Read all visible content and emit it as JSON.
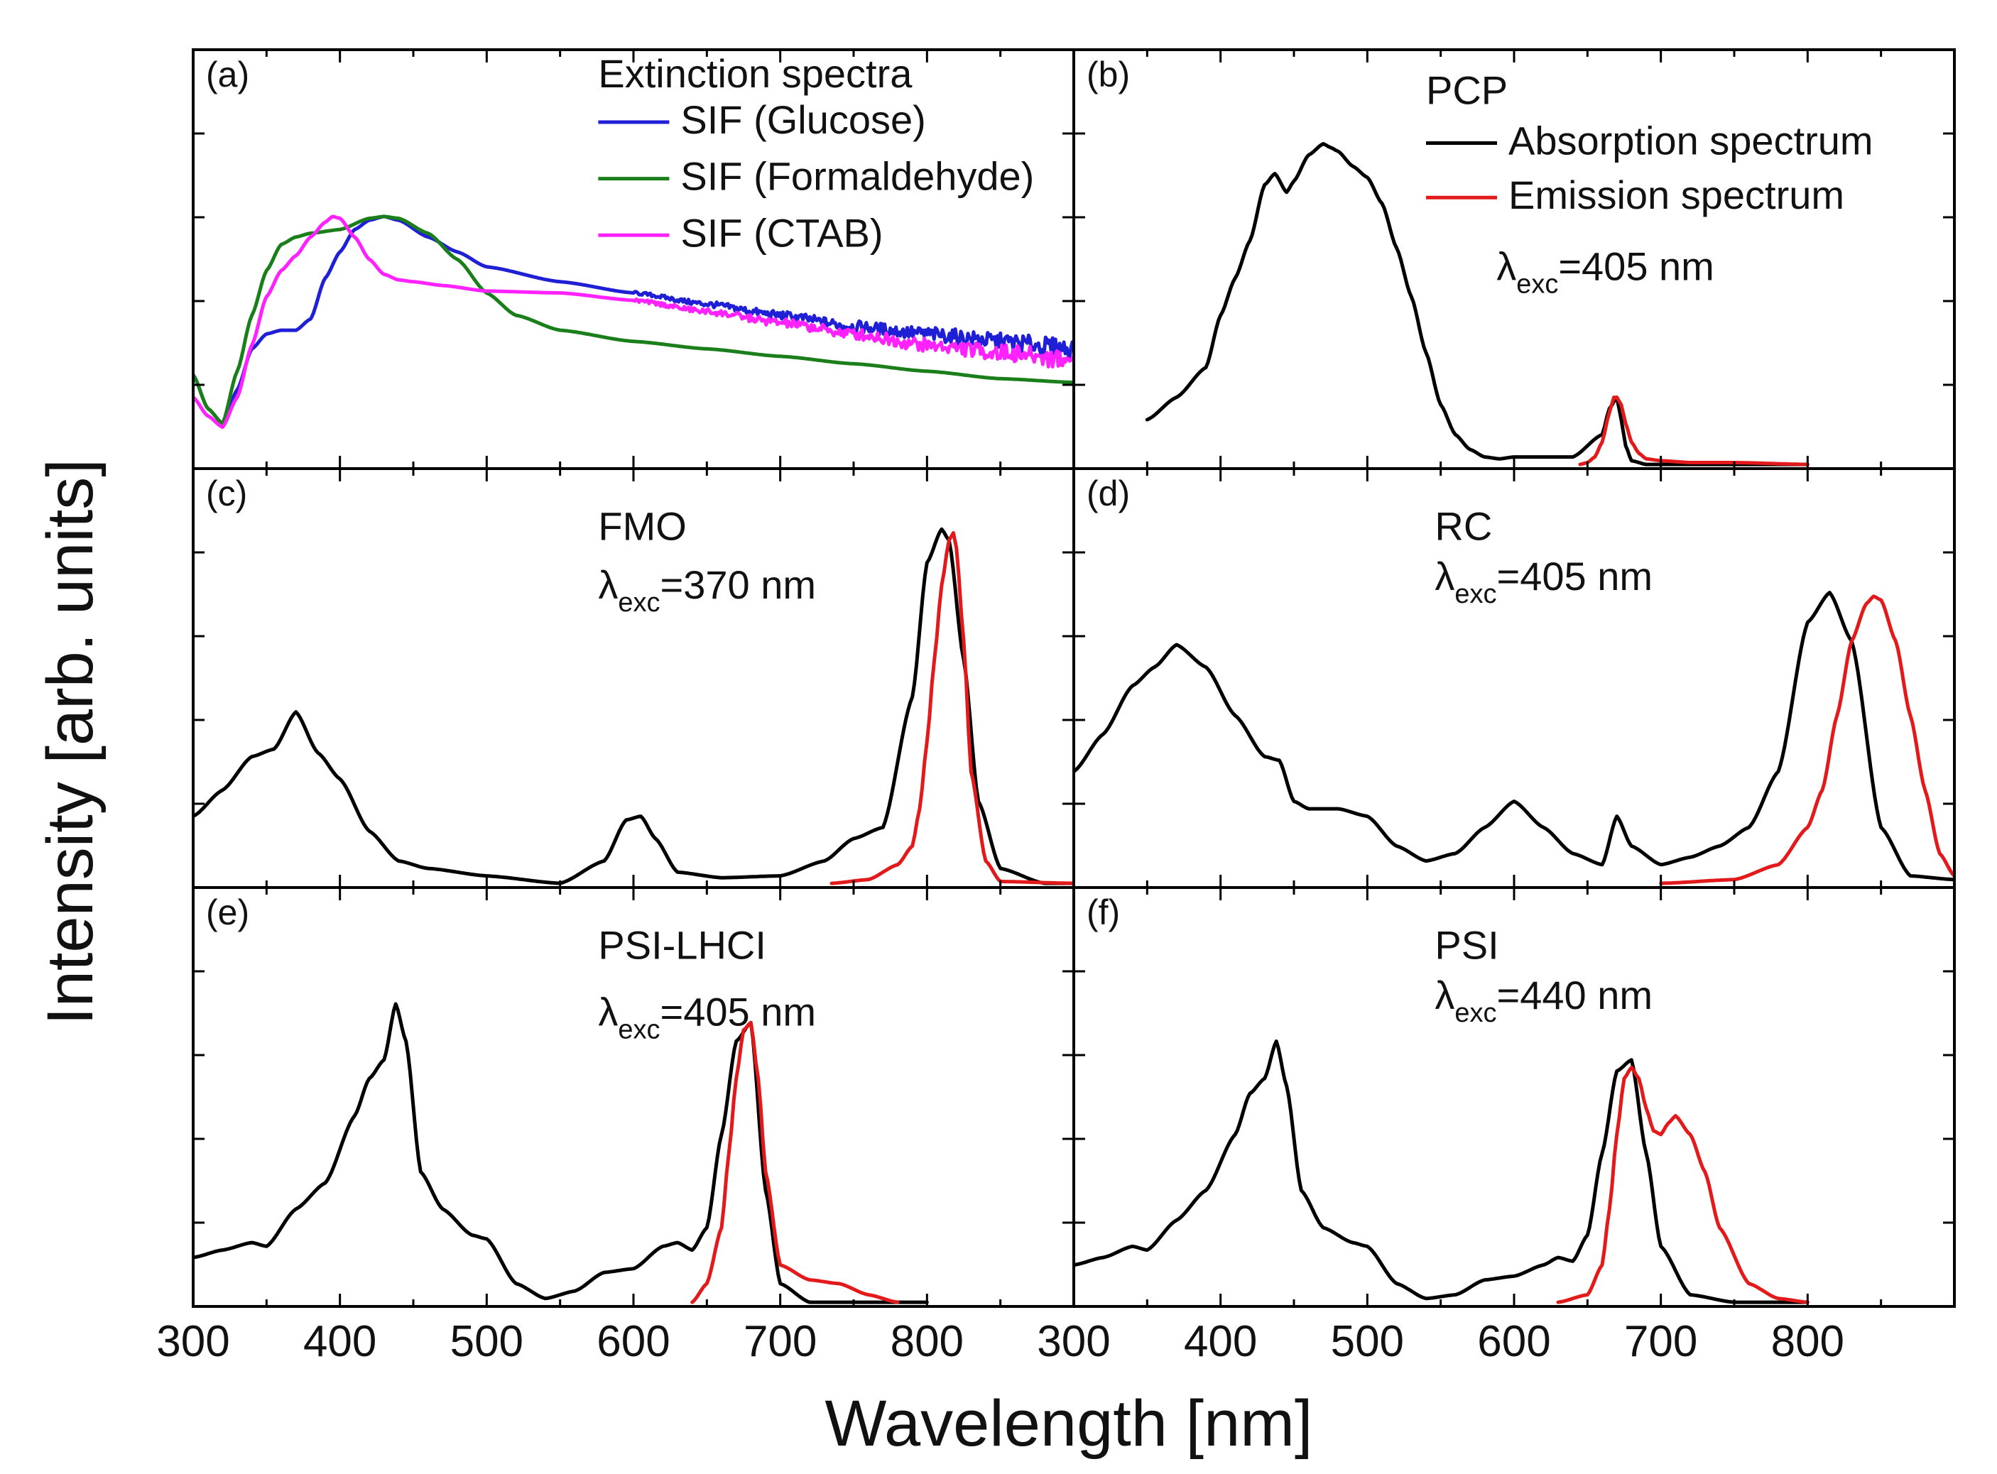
{
  "figure": {
    "xlabel": "Wavelength [nm]",
    "ylabel": "Intensity [arb. units]"
  },
  "colors": {
    "absorption": "#000000",
    "emission": "#e31a1c",
    "glucose": "#1f1fd6",
    "formaldehyde": "#1a7f1a",
    "ctab": "#ff22ff"
  },
  "chart_data": [
    {
      "id": "a",
      "type": "line",
      "panel_label": "(a)",
      "title": "Extinction spectra",
      "xlim": [
        300,
        900
      ],
      "ylim": [
        0,
        1
      ],
      "xticks": [
        300,
        400,
        500,
        600,
        700,
        800
      ],
      "legend": "top-right",
      "series": [
        {
          "name": "SIF (Glucose)",
          "color": "#1f1fd6",
          "noisy": true,
          "x": [
            300,
            310,
            320,
            330,
            340,
            350,
            360,
            370,
            380,
            390,
            400,
            410,
            420,
            430,
            440,
            460,
            480,
            500,
            550,
            600,
            650,
            700,
            750,
            800,
            850,
            900
          ],
          "y": [
            0.24,
            0.15,
            0.11,
            0.2,
            0.31,
            0.35,
            0.36,
            0.36,
            0.39,
            0.5,
            0.57,
            0.63,
            0.655,
            0.665,
            0.655,
            0.61,
            0.57,
            0.53,
            0.49,
            0.46,
            0.43,
            0.4,
            0.37,
            0.35,
            0.33,
            0.31
          ]
        },
        {
          "name": "SIF (Formaldehyde)",
          "color": "#1a7f1a",
          "noisy": false,
          "x": [
            300,
            310,
            320,
            330,
            340,
            350,
            360,
            370,
            380,
            400,
            420,
            430,
            440,
            460,
            480,
            500,
            520,
            550,
            600,
            650,
            700,
            750,
            800,
            850,
            900
          ],
          "y": [
            0.24,
            0.15,
            0.11,
            0.25,
            0.4,
            0.52,
            0.59,
            0.61,
            0.62,
            0.63,
            0.66,
            0.665,
            0.66,
            0.62,
            0.55,
            0.46,
            0.4,
            0.36,
            0.33,
            0.31,
            0.29,
            0.27,
            0.25,
            0.23,
            0.22
          ]
        },
        {
          "name": "SIF (CTAB)",
          "color": "#ff22ff",
          "noisy": true,
          "x": [
            300,
            310,
            320,
            330,
            340,
            350,
            360,
            370,
            380,
            390,
            395,
            400,
            410,
            420,
            430,
            440,
            450,
            470,
            500,
            550,
            600,
            650,
            700,
            750,
            800,
            850,
            900
          ],
          "y": [
            0.18,
            0.13,
            0.1,
            0.18,
            0.32,
            0.45,
            0.52,
            0.56,
            0.61,
            0.65,
            0.665,
            0.66,
            0.61,
            0.55,
            0.51,
            0.495,
            0.49,
            0.48,
            0.465,
            0.46,
            0.44,
            0.41,
            0.38,
            0.35,
            0.32,
            0.3,
            0.28
          ]
        }
      ]
    },
    {
      "id": "b",
      "type": "line",
      "panel_label": "(b)",
      "title": "PCP",
      "annotation": {
        "prefix": "λ",
        "sub": "exc",
        "text": "=405 nm"
      },
      "xlim": [
        300,
        900
      ],
      "ylim": [
        0,
        1
      ],
      "legend": "top-right",
      "series": [
        {
          "name": "Absorption spectrum",
          "color": "#000000",
          "x": [
            350,
            370,
            390,
            400,
            410,
            420,
            430,
            437,
            445,
            450,
            460,
            470,
            475,
            480,
            490,
            500,
            510,
            520,
            530,
            540,
            550,
            560,
            570,
            580,
            590,
            600,
            620,
            640,
            660,
            665,
            670,
            673,
            676,
            680,
            690,
            700,
            750,
            800
          ],
          "y": [
            0.12,
            0.18,
            0.26,
            0.4,
            0.5,
            0.6,
            0.75,
            0.78,
            0.73,
            0.76,
            0.83,
            0.86,
            0.85,
            0.84,
            0.8,
            0.77,
            0.7,
            0.58,
            0.45,
            0.3,
            0.16,
            0.08,
            0.04,
            0.02,
            0.015,
            0.02,
            0.02,
            0.02,
            0.08,
            0.15,
            0.18,
            0.12,
            0.05,
            0.01,
            0.0,
            0.0,
            0.0,
            0.0
          ]
        },
        {
          "name": "Emission spectrum",
          "color": "#e31a1c",
          "x": [
            645,
            650,
            655,
            660,
            665,
            668,
            670,
            673,
            676,
            680,
            685,
            690,
            700,
            720,
            750,
            800
          ],
          "y": [
            0.0,
            0.005,
            0.02,
            0.06,
            0.14,
            0.18,
            0.18,
            0.16,
            0.11,
            0.06,
            0.03,
            0.015,
            0.01,
            0.005,
            0.005,
            0.0
          ]
        }
      ]
    },
    {
      "id": "c",
      "type": "line",
      "panel_label": "(c)",
      "title": "FMO",
      "annotation": {
        "prefix": "λ",
        "sub": "exc",
        "text": "=370 nm"
      },
      "xlim": [
        300,
        900
      ],
      "ylim": [
        0,
        1
      ],
      "series": [
        {
          "name": "Absorption",
          "color": "#000000",
          "x": [
            300,
            320,
            340,
            355,
            370,
            385,
            400,
            420,
            440,
            460,
            500,
            550,
            580,
            595,
            605,
            615,
            630,
            660,
            700,
            730,
            750,
            770,
            790,
            800,
            810,
            815,
            825,
            835,
            850,
            880,
            900
          ],
          "y": [
            0.18,
            0.25,
            0.34,
            0.36,
            0.46,
            0.35,
            0.28,
            0.14,
            0.06,
            0.04,
            0.02,
            0.0,
            0.06,
            0.17,
            0.18,
            0.12,
            0.03,
            0.015,
            0.02,
            0.06,
            0.12,
            0.15,
            0.5,
            0.86,
            0.95,
            0.92,
            0.6,
            0.22,
            0.04,
            0.0,
            0.0
          ]
        },
        {
          "name": "Emission",
          "color": "#e31a1c",
          "x": [
            735,
            760,
            780,
            790,
            795,
            800,
            805,
            810,
            815,
            818,
            820,
            825,
            830,
            840,
            850,
            900
          ],
          "y": [
            0.0,
            0.01,
            0.05,
            0.1,
            0.2,
            0.38,
            0.6,
            0.8,
            0.92,
            0.94,
            0.9,
            0.65,
            0.3,
            0.06,
            0.005,
            0.0
          ]
        }
      ]
    },
    {
      "id": "d",
      "type": "line",
      "panel_label": "(d)",
      "title": "RC",
      "annotation": {
        "prefix": "λ",
        "sub": "exc",
        "text": "=405 nm"
      },
      "xlim": [
        300,
        900
      ],
      "ylim": [
        0,
        1
      ],
      "series": [
        {
          "name": "Absorption",
          "color": "#000000",
          "x": [
            300,
            320,
            340,
            355,
            370,
            390,
            410,
            430,
            440,
            450,
            460,
            480,
            500,
            520,
            540,
            560,
            580,
            600,
            620,
            640,
            660,
            670,
            680,
            700,
            720,
            740,
            760,
            780,
            800,
            815,
            830,
            850,
            870,
            900
          ],
          "y": [
            0.3,
            0.4,
            0.53,
            0.58,
            0.64,
            0.58,
            0.45,
            0.34,
            0.33,
            0.22,
            0.2,
            0.2,
            0.18,
            0.1,
            0.06,
            0.08,
            0.15,
            0.22,
            0.15,
            0.08,
            0.05,
            0.18,
            0.1,
            0.05,
            0.07,
            0.1,
            0.15,
            0.3,
            0.7,
            0.78,
            0.65,
            0.15,
            0.02,
            0.01
          ]
        },
        {
          "name": "Emission",
          "color": "#e31a1c",
          "x": [
            700,
            750,
            780,
            800,
            810,
            820,
            830,
            840,
            845,
            850,
            860,
            870,
            880,
            890,
            900
          ],
          "y": [
            0.0,
            0.01,
            0.05,
            0.15,
            0.25,
            0.45,
            0.65,
            0.75,
            0.77,
            0.76,
            0.65,
            0.45,
            0.25,
            0.08,
            0.02
          ]
        }
      ]
    },
    {
      "id": "e",
      "type": "line",
      "panel_label": "(e)",
      "title": "PSI-LHCI",
      "annotation": {
        "prefix": "λ",
        "sub": "exc",
        "text": "=405 nm"
      },
      "xlim": [
        300,
        900
      ],
      "ylim": [
        0,
        1
      ],
      "series": [
        {
          "name": "Absorption",
          "color": "#000000",
          "x": [
            300,
            320,
            340,
            350,
            370,
            390,
            410,
            420,
            430,
            438,
            445,
            455,
            470,
            490,
            500,
            520,
            540,
            560,
            580,
            600,
            620,
            630,
            640,
            650,
            660,
            670,
            680,
            690,
            700,
            720,
            750,
            800
          ],
          "y": [
            0.12,
            0.14,
            0.16,
            0.15,
            0.25,
            0.32,
            0.5,
            0.6,
            0.65,
            0.8,
            0.7,
            0.35,
            0.25,
            0.18,
            0.17,
            0.05,
            0.01,
            0.03,
            0.08,
            0.09,
            0.15,
            0.16,
            0.14,
            0.2,
            0.45,
            0.7,
            0.75,
            0.3,
            0.05,
            0.0,
            0.0,
            0.0
          ]
        },
        {
          "name": "Emission",
          "color": "#e31a1c",
          "x": [
            640,
            650,
            660,
            665,
            670,
            675,
            680,
            685,
            690,
            700,
            720,
            740,
            760,
            780
          ],
          "y": [
            0.0,
            0.05,
            0.2,
            0.4,
            0.6,
            0.73,
            0.75,
            0.6,
            0.35,
            0.1,
            0.06,
            0.05,
            0.02,
            0.0
          ]
        }
      ]
    },
    {
      "id": "f",
      "type": "line",
      "panel_label": "(f)",
      "title": "PSI",
      "annotation": {
        "prefix": "λ",
        "sub": "exc",
        "text": "=440 nm"
      },
      "xlim": [
        300,
        900
      ],
      "ylim": [
        0,
        1
      ],
      "series": [
        {
          "name": "Absorption",
          "color": "#000000",
          "x": [
            300,
            320,
            340,
            350,
            370,
            390,
            410,
            420,
            430,
            438,
            445,
            455,
            470,
            490,
            500,
            520,
            540,
            560,
            580,
            600,
            620,
            630,
            640,
            650,
            660,
            670,
            680,
            690,
            700,
            720,
            750,
            800
          ],
          "y": [
            0.1,
            0.12,
            0.15,
            0.14,
            0.22,
            0.3,
            0.45,
            0.56,
            0.6,
            0.7,
            0.58,
            0.3,
            0.2,
            0.16,
            0.15,
            0.05,
            0.01,
            0.02,
            0.06,
            0.07,
            0.1,
            0.12,
            0.11,
            0.18,
            0.4,
            0.62,
            0.65,
            0.4,
            0.15,
            0.02,
            0.0,
            0.0
          ]
        },
        {
          "name": "Emission",
          "color": "#e31a1c",
          "x": [
            630,
            650,
            660,
            665,
            670,
            675,
            680,
            685,
            690,
            695,
            700,
            705,
            710,
            720,
            730,
            740,
            760,
            780,
            800
          ],
          "y": [
            0.0,
            0.02,
            0.1,
            0.25,
            0.45,
            0.6,
            0.63,
            0.6,
            0.52,
            0.46,
            0.45,
            0.48,
            0.5,
            0.45,
            0.35,
            0.2,
            0.05,
            0.01,
            0.0
          ]
        }
      ]
    }
  ]
}
